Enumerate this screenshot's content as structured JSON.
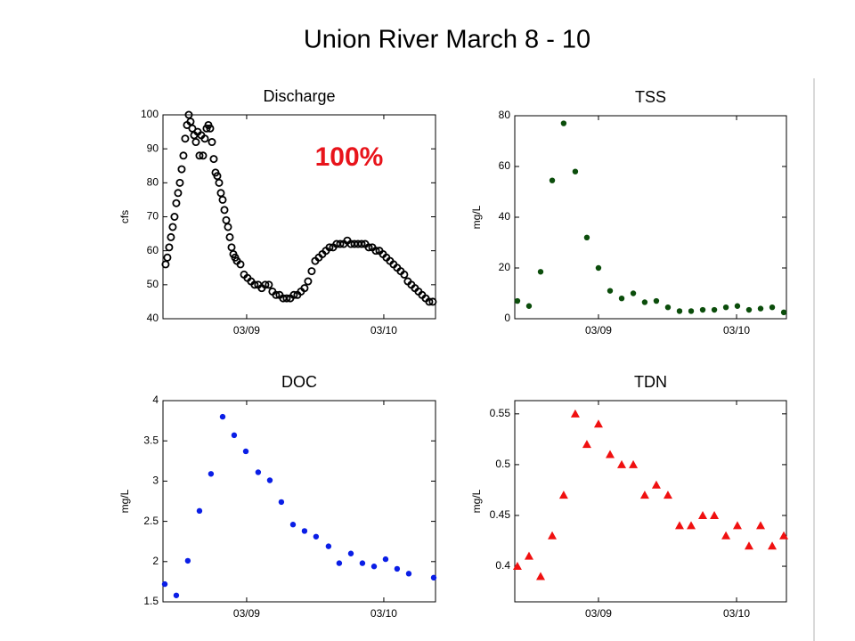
{
  "title": "Union River March 8  - 10",
  "chart_data": [
    {
      "type": "scatter",
      "title": "Discharge",
      "ylabel": "cfs",
      "annotation": "100%",
      "annotation_color": "#e8141b",
      "marker": "circle-open",
      "color": "#000000",
      "xlim": [
        8.39,
        10.377
      ],
      "xticks": [
        {
          "value": 9,
          "label": "03/09"
        },
        {
          "value": 10,
          "label": "03/10"
        }
      ],
      "ylim": [
        40,
        100
      ],
      "yticks": [
        40,
        50,
        60,
        70,
        80,
        90,
        100
      ],
      "x": [
        8.409,
        8.422,
        8.435,
        8.448,
        8.461,
        8.474,
        8.487,
        8.5,
        8.513,
        8.526,
        8.539,
        8.552,
        8.565,
        8.578,
        8.591,
        8.604,
        8.617,
        8.63,
        8.643,
        8.656,
        8.669,
        8.682,
        8.695,
        8.708,
        8.721,
        8.734,
        8.747,
        8.76,
        8.773,
        8.786,
        8.799,
        8.812,
        8.825,
        8.838,
        8.851,
        8.864,
        8.877,
        8.89,
        8.903,
        8.916,
        8.929,
        8.955,
        8.981,
        9.006,
        9.032,
        9.058,
        9.084,
        9.11,
        9.136,
        9.162,
        9.188,
        9.214,
        9.24,
        9.266,
        9.292,
        9.318,
        9.344,
        9.37,
        9.396,
        9.422,
        9.448,
        9.474,
        9.5,
        9.526,
        9.552,
        9.578,
        9.604,
        9.63,
        9.656,
        9.682,
        9.708,
        9.734,
        9.76,
        9.786,
        9.812,
        9.838,
        9.864,
        9.89,
        9.916,
        9.942,
        9.968,
        9.994,
        10.019,
        10.045,
        10.071,
        10.097,
        10.123,
        10.149,
        10.175,
        10.201,
        10.227,
        10.253,
        10.279,
        10.305,
        10.331,
        10.357
      ],
      "values": [
        56,
        58,
        61,
        64,
        67,
        70,
        74,
        77,
        80,
        84,
        88,
        93,
        97,
        100,
        98,
        96,
        94,
        92,
        95,
        88,
        94,
        88,
        93,
        96,
        97,
        96,
        92,
        87,
        83,
        82,
        80,
        77,
        75,
        72,
        69,
        67,
        64,
        61,
        59,
        58,
        57,
        56,
        53,
        52,
        51,
        50,
        50,
        49,
        50,
        50,
        48,
        47,
        47,
        46,
        46,
        46,
        47,
        47,
        48,
        49,
        51,
        54,
        57,
        58,
        59,
        60,
        61,
        61,
        62,
        62,
        62,
        63,
        62,
        62,
        62,
        62,
        62,
        61,
        61,
        60,
        60,
        59,
        58,
        57,
        56,
        55,
        54,
        53,
        51,
        50,
        49,
        48,
        47,
        46,
        45,
        45
      ]
    },
    {
      "type": "scatter",
      "title": "TSS",
      "ylabel": "mg/L",
      "marker": "dot",
      "color": "#0b4d0b",
      "xlim": [
        8.394,
        10.361
      ],
      "xticks": [
        {
          "value": 9,
          "label": "03/09"
        },
        {
          "value": 10,
          "label": "03/10"
        }
      ],
      "ylim": [
        0,
        80
      ],
      "yticks": [
        0,
        20,
        40,
        60,
        80
      ],
      "x": [
        8.413,
        8.497,
        8.581,
        8.665,
        8.748,
        8.832,
        8.916,
        9.0,
        9.084,
        9.168,
        9.252,
        9.335,
        9.419,
        9.503,
        9.587,
        9.671,
        9.755,
        9.839,
        9.923,
        10.006,
        10.09,
        10.174,
        10.258,
        10.342
      ],
      "values": [
        7,
        5,
        18.5,
        54.5,
        77,
        58,
        32,
        20,
        11,
        8,
        10,
        6.5,
        7,
        4.5,
        3,
        3,
        3.5,
        3.5,
        4.5,
        5,
        3.5,
        4,
        4.5,
        2.5
      ]
    },
    {
      "type": "scatter",
      "title": "DOC",
      "ylabel": "mg/L",
      "marker": "dot",
      "color": "#0a1ee6",
      "xlim": [
        8.39,
        10.377
      ],
      "xticks": [
        {
          "value": 9,
          "label": "03/09"
        },
        {
          "value": 10,
          "label": "03/10"
        }
      ],
      "ylim": [
        1.5,
        4
      ],
      "yticks": [
        1.5,
        2,
        2.5,
        3,
        3.5,
        4
      ],
      "x": [
        8.403,
        8.487,
        8.571,
        8.656,
        8.74,
        8.825,
        8.909,
        8.994,
        9.084,
        9.169,
        9.253,
        9.338,
        9.422,
        9.506,
        9.597,
        9.675,
        9.76,
        9.844,
        9.929,
        10.013,
        10.097,
        10.182,
        10.364
      ],
      "values": [
        1.72,
        1.58,
        2.01,
        2.63,
        3.09,
        3.8,
        3.57,
        3.37,
        3.11,
        3.01,
        2.74,
        2.46,
        2.38,
        2.31,
        2.19,
        1.98,
        2.1,
        1.98,
        1.94,
        2.03,
        1.91,
        1.85,
        1.8
      ]
    },
    {
      "type": "scatter",
      "title": "TDN",
      "ylabel": "mg/L",
      "marker": "triangle",
      "color": "#f01010",
      "xlim": [
        8.394,
        10.361
      ],
      "xticks": [
        {
          "value": 9,
          "label": "03/09"
        },
        {
          "value": 10,
          "label": "03/10"
        }
      ],
      "ylim": [
        0.365,
        0.563
      ],
      "yticks": [
        0.4,
        0.45,
        0.5,
        0.55
      ],
      "x": [
        8.413,
        8.497,
        8.581,
        8.665,
        8.748,
        8.832,
        8.916,
        9.0,
        9.084,
        9.168,
        9.252,
        9.335,
        9.419,
        9.503,
        9.587,
        9.671,
        9.755,
        9.839,
        9.923,
        10.006,
        10.09,
        10.174,
        10.258,
        10.342
      ],
      "values": [
        0.4,
        0.41,
        0.39,
        0.43,
        0.47,
        0.55,
        0.52,
        0.54,
        0.51,
        0.5,
        0.5,
        0.47,
        0.48,
        0.47,
        0.44,
        0.44,
        0.45,
        0.45,
        0.43,
        0.44,
        0.42,
        0.44,
        0.42,
        0.43
      ]
    }
  ]
}
